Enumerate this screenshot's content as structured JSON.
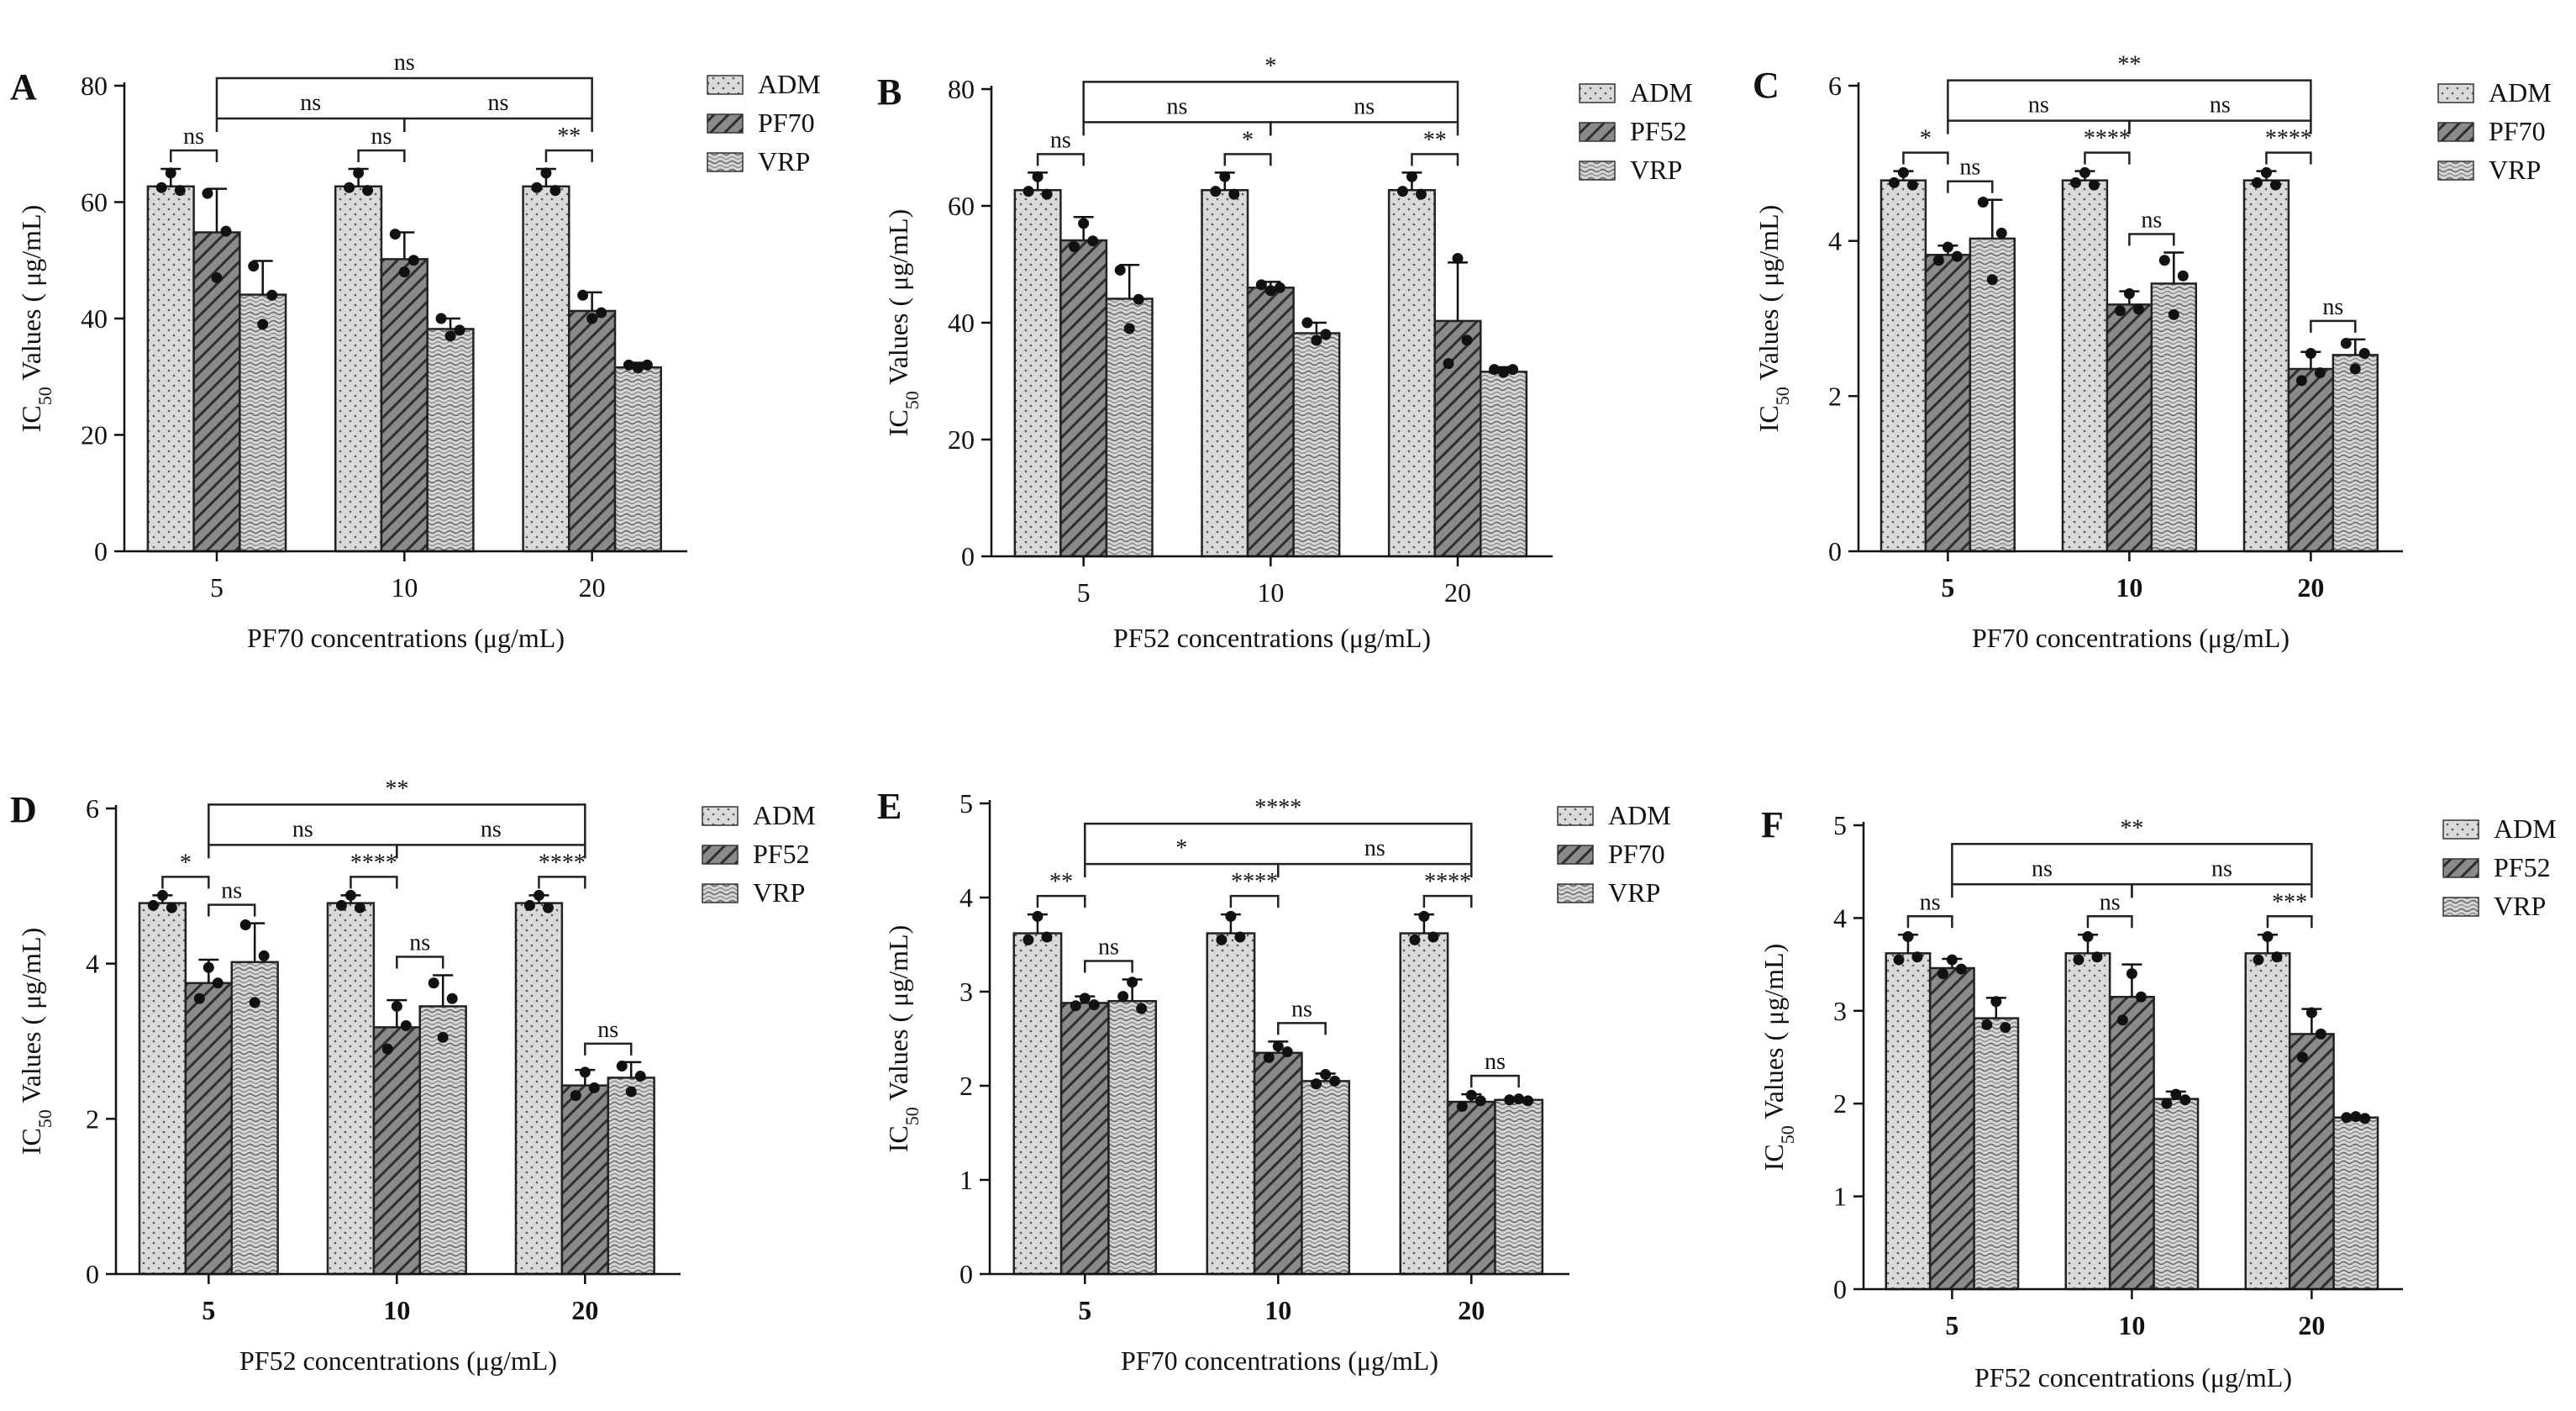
{
  "figure": {
    "legend_swatch_note": "ADM dotted, second drug hatched, VRP wave pattern"
  },
  "colors": {
    "adm_fill": "#d9d9d9",
    "drug_fill": "#6e6e6e",
    "vrp_fill": "#cfcfcf",
    "ink": "#111111"
  },
  "chart_data": [
    {
      "id": "A",
      "panel_label": "A",
      "type": "bar",
      "title": "",
      "categories": [
        "5",
        "10",
        "20"
      ],
      "xlabel": "PF70 concentrations (μg/mL)",
      "ylabel_prefix": "IC",
      "ylabel_sub": "50",
      "ylabel_suffix": " Values ( μg/mL)",
      "ylim": [
        0,
        80
      ],
      "yticks": [
        "0",
        "20",
        "40",
        "60",
        "80"
      ],
      "bold_x_ticks": false,
      "legend": [
        "ADM",
        "PF70",
        "VRP"
      ],
      "series": [
        {
          "name": "ADM",
          "values": [
            62.7,
            62.7,
            62.7
          ],
          "errors": [
            3.0,
            3.0,
            3.0
          ],
          "points": [
            [
              62.5,
              65,
              62
            ],
            [
              62.5,
              65,
              62
            ],
            [
              62.5,
              65,
              62
            ]
          ]
        },
        {
          "name": "PF70",
          "values": [
            54.8,
            50.2,
            41.3
          ],
          "errors": [
            7.5,
            4.6,
            3.2
          ],
          "points": [
            [
              61.5,
              47,
              55
            ],
            [
              54.5,
              48,
              50
            ],
            [
              44,
              40,
              41
            ]
          ]
        },
        {
          "name": "VRP",
          "values": [
            44.1,
            38.2,
            31.6
          ],
          "errors": [
            5.8,
            1.8,
            0.8
          ],
          "points": [
            [
              49,
              39,
              44
            ],
            [
              40,
              37,
              38
            ],
            [
              32,
              31.5,
              32
            ]
          ]
        }
      ],
      "annotations": [
        {
          "text": "ns",
          "type": "within",
          "group": 0,
          "from": 0,
          "to": 1
        },
        {
          "text": "ns",
          "type": "within",
          "group": 1,
          "from": 0,
          "to": 1
        },
        {
          "text": "**",
          "type": "within",
          "group": 2,
          "from": 0,
          "to": 1
        },
        {
          "text": "ns",
          "type": "across",
          "from": 0,
          "to": 1
        },
        {
          "text": "ns",
          "type": "across",
          "from": 1,
          "to": 2
        },
        {
          "text": "ns",
          "type": "across-top",
          "from": 0,
          "to": 2
        }
      ]
    },
    {
      "id": "B",
      "panel_label": "B",
      "type": "bar",
      "title": "",
      "categories": [
        "5",
        "10",
        "20"
      ],
      "xlabel": "PF52 concentrations (μg/mL)",
      "ylabel_prefix": "IC",
      "ylabel_sub": "50",
      "ylabel_suffix": " Values ( μg/mL)",
      "ylim": [
        0,
        80
      ],
      "yticks": [
        "0",
        "20",
        "40",
        "60",
        "80"
      ],
      "bold_x_ticks": false,
      "legend": [
        "ADM",
        "PF52",
        "VRP"
      ],
      "series": [
        {
          "name": "ADM",
          "values": [
            62.7,
            62.7,
            62.7
          ],
          "errors": [
            3.0,
            3.0,
            3.0
          ],
          "points": [
            [
              62.5,
              65,
              62
            ],
            [
              62.5,
              65,
              62
            ],
            [
              62.5,
              65,
              62
            ]
          ]
        },
        {
          "name": "PF52",
          "values": [
            54.1,
            46.0,
            40.3
          ],
          "errors": [
            4.0,
            1.0,
            10.0
          ],
          "points": [
            [
              53,
              57,
              54
            ],
            [
              46.5,
              45.5,
              46
            ],
            [
              33,
              51,
              37
            ]
          ]
        },
        {
          "name": "VRP",
          "values": [
            44.1,
            38.2,
            31.6
          ],
          "errors": [
            5.8,
            1.8,
            0.8
          ],
          "points": [
            [
              49,
              39,
              44
            ],
            [
              40,
              37,
              38
            ],
            [
              32,
              31.5,
              32
            ]
          ]
        }
      ],
      "annotations": [
        {
          "text": "ns",
          "type": "within",
          "group": 0,
          "from": 0,
          "to": 1
        },
        {
          "text": "*",
          "type": "within",
          "group": 1,
          "from": 0,
          "to": 1
        },
        {
          "text": "**",
          "type": "within",
          "group": 2,
          "from": 0,
          "to": 1
        },
        {
          "text": "ns",
          "type": "across",
          "from": 0,
          "to": 1
        },
        {
          "text": "ns",
          "type": "across",
          "from": 1,
          "to": 2
        },
        {
          "text": "*",
          "type": "across-top",
          "from": 0,
          "to": 2
        }
      ]
    },
    {
      "id": "C",
      "panel_label": "C",
      "type": "bar",
      "title": "",
      "categories": [
        "5",
        "10",
        "20"
      ],
      "xlabel": "PF70 concentrations (μg/mL)",
      "ylabel_prefix": "IC",
      "ylabel_sub": "50",
      "ylabel_suffix": " Values ( μg/mL)",
      "ylim": [
        0,
        6
      ],
      "yticks": [
        "0",
        "2",
        "4",
        "6"
      ],
      "bold_x_ticks": true,
      "legend": [
        "ADM",
        "PF70",
        "VRP"
      ],
      "series": [
        {
          "name": "ADM",
          "values": [
            4.78,
            4.78,
            4.78
          ],
          "errors": [
            0.12,
            0.12,
            0.12
          ],
          "points": [
            [
              4.75,
              4.88,
              4.72
            ],
            [
              4.75,
              4.88,
              4.72
            ],
            [
              4.75,
              4.88,
              4.72
            ]
          ]
        },
        {
          "name": "PF70",
          "values": [
            3.82,
            3.18,
            2.35
          ],
          "errors": [
            0.12,
            0.17,
            0.22
          ],
          "points": [
            [
              3.75,
              3.92,
              3.8
            ],
            [
              3.1,
              3.32,
              3.12
            ],
            [
              2.2,
              2.55,
              2.3
            ]
          ]
        },
        {
          "name": "VRP",
          "values": [
            4.03,
            3.45,
            2.53
          ],
          "errors": [
            0.5,
            0.4,
            0.2
          ],
          "points": [
            [
              4.5,
              3.5,
              4.1
            ],
            [
              3.75,
              3.05,
              3.55
            ],
            [
              2.68,
              2.35,
              2.55
            ]
          ]
        }
      ],
      "annotations": [
        {
          "text": "*",
          "type": "within",
          "group": 0,
          "from": 0,
          "to": 1
        },
        {
          "text": "ns",
          "type": "within",
          "group": 0,
          "from": 1,
          "to": 2
        },
        {
          "text": "****",
          "type": "within",
          "group": 1,
          "from": 0,
          "to": 1
        },
        {
          "text": "ns",
          "type": "within",
          "group": 1,
          "from": 1,
          "to": 2
        },
        {
          "text": "****",
          "type": "within",
          "group": 2,
          "from": 0,
          "to": 1
        },
        {
          "text": "ns",
          "type": "within",
          "group": 2,
          "from": 1,
          "to": 2
        },
        {
          "text": "ns",
          "type": "across",
          "from": 0,
          "to": 1
        },
        {
          "text": "ns",
          "type": "across",
          "from": 1,
          "to": 2
        },
        {
          "text": "**",
          "type": "across-top",
          "from": 0,
          "to": 2
        }
      ]
    },
    {
      "id": "D",
      "panel_label": "D",
      "type": "bar",
      "title": "",
      "categories": [
        "5",
        "10",
        "20"
      ],
      "xlabel": "PF52 concentrations (μg/mL)",
      "ylabel_prefix": "IC",
      "ylabel_sub": "50",
      "ylabel_suffix": " Values ( μg/mL)",
      "ylim": [
        0,
        6
      ],
      "yticks": [
        "0",
        "2",
        "4",
        "6"
      ],
      "bold_x_ticks": true,
      "legend": [
        "ADM",
        "PF52",
        "VRP"
      ],
      "series": [
        {
          "name": "ADM",
          "values": [
            4.78,
            4.78,
            4.78
          ],
          "errors": [
            0.1,
            0.1,
            0.1
          ],
          "points": [
            [
              4.75,
              4.88,
              4.72
            ],
            [
              4.75,
              4.88,
              4.72
            ],
            [
              4.75,
              4.88,
              4.72
            ]
          ]
        },
        {
          "name": "PF52",
          "values": [
            3.75,
            3.18,
            2.43
          ],
          "errors": [
            0.3,
            0.35,
            0.2
          ],
          "points": [
            [
              3.55,
              3.95,
              3.75
            ],
            [
              2.9,
              3.45,
              3.2
            ],
            [
              2.3,
              2.6,
              2.4
            ]
          ]
        },
        {
          "name": "VRP",
          "values": [
            4.02,
            3.45,
            2.53
          ],
          "errors": [
            0.5,
            0.4,
            0.2
          ],
          "points": [
            [
              4.5,
              3.5,
              4.1
            ],
            [
              3.75,
              3.05,
              3.55
            ],
            [
              2.68,
              2.35,
              2.55
            ]
          ]
        }
      ],
      "annotations": [
        {
          "text": "*",
          "type": "within",
          "group": 0,
          "from": 0,
          "to": 1
        },
        {
          "text": "ns",
          "type": "within",
          "group": 0,
          "from": 1,
          "to": 2
        },
        {
          "text": "****",
          "type": "within",
          "group": 1,
          "from": 0,
          "to": 1
        },
        {
          "text": "ns",
          "type": "within",
          "group": 1,
          "from": 1,
          "to": 2
        },
        {
          "text": "****",
          "type": "within",
          "group": 2,
          "from": 0,
          "to": 1
        },
        {
          "text": "ns",
          "type": "within",
          "group": 2,
          "from": 1,
          "to": 2
        },
        {
          "text": "ns",
          "type": "across",
          "from": 0,
          "to": 1
        },
        {
          "text": "ns",
          "type": "across",
          "from": 1,
          "to": 2
        },
        {
          "text": "**",
          "type": "across-top",
          "from": 0,
          "to": 2
        }
      ]
    },
    {
      "id": "E",
      "panel_label": "E",
      "type": "bar",
      "title": "",
      "categories": [
        "5",
        "10",
        "20"
      ],
      "xlabel": "PF70 concentrations (μg/mL)",
      "ylabel_prefix": "IC",
      "ylabel_sub": "50",
      "ylabel_suffix": " Values ( μg/mL)",
      "ylim": [
        0,
        5
      ],
      "yticks": [
        "0",
        "1",
        "2",
        "3",
        "4",
        "5"
      ],
      "bold_x_ticks": true,
      "legend": [
        "ADM",
        "PF70",
        "VRP"
      ],
      "series": [
        {
          "name": "ADM",
          "values": [
            3.62,
            3.62,
            3.62
          ],
          "errors": [
            0.2,
            0.2,
            0.2
          ],
          "points": [
            [
              3.55,
              3.8,
              3.58
            ],
            [
              3.55,
              3.8,
              3.58
            ],
            [
              3.55,
              3.8,
              3.58
            ]
          ]
        },
        {
          "name": "PF70",
          "values": [
            2.88,
            2.35,
            1.83
          ],
          "errors": [
            0.07,
            0.12,
            0.08
          ],
          "points": [
            [
              2.85,
              2.93,
              2.86
            ],
            [
              2.3,
              2.42,
              2.36
            ],
            [
              1.78,
              1.9,
              1.84
            ]
          ]
        },
        {
          "name": "VRP",
          "values": [
            2.9,
            2.05,
            1.85
          ],
          "errors": [
            0.23,
            0.08,
            0.02
          ],
          "points": [
            [
              2.95,
              3.1,
              2.82
            ],
            [
              2.02,
              2.12,
              2.05
            ],
            [
              1.85,
              1.86,
              1.84
            ]
          ]
        }
      ],
      "annotations": [
        {
          "text": "**",
          "type": "within",
          "group": 0,
          "from": 0,
          "to": 1
        },
        {
          "text": "ns",
          "type": "within",
          "group": 0,
          "from": 1,
          "to": 2
        },
        {
          "text": "****",
          "type": "within",
          "group": 1,
          "from": 0,
          "to": 1
        },
        {
          "text": "ns",
          "type": "within",
          "group": 1,
          "from": 1,
          "to": 2
        },
        {
          "text": "****",
          "type": "within",
          "group": 2,
          "from": 0,
          "to": 1
        },
        {
          "text": "ns",
          "type": "within",
          "group": 2,
          "from": 1,
          "to": 2
        },
        {
          "text": "*",
          "type": "across",
          "from": 0,
          "to": 1
        },
        {
          "text": "ns",
          "type": "across",
          "from": 1,
          "to": 2
        },
        {
          "text": "****",
          "type": "across-top",
          "from": 0,
          "to": 2
        }
      ]
    },
    {
      "id": "F",
      "panel_label": "F",
      "type": "bar",
      "title": "",
      "categories": [
        "5",
        "10",
        "20"
      ],
      "xlabel": "PF52 concentrations (μg/mL)",
      "ylabel_prefix": "IC",
      "ylabel_sub": "50",
      "ylabel_suffix": "  Values ( μg/mL)",
      "ylim": [
        0,
        5
      ],
      "yticks": [
        "0",
        "1",
        "2",
        "3",
        "4",
        "5"
      ],
      "bold_x_ticks": true,
      "legend": [
        "ADM",
        "PF52",
        "VRP"
      ],
      "series": [
        {
          "name": "ADM",
          "values": [
            3.62,
            3.62,
            3.62
          ],
          "errors": [
            0.2,
            0.2,
            0.2
          ],
          "points": [
            [
              3.55,
              3.8,
              3.58
            ],
            [
              3.55,
              3.8,
              3.58
            ],
            [
              3.55,
              3.8,
              3.58
            ]
          ]
        },
        {
          "name": "PF52",
          "values": [
            3.46,
            3.15,
            2.75
          ],
          "errors": [
            0.1,
            0.35,
            0.27
          ],
          "points": [
            [
              3.4,
              3.55,
              3.45
            ],
            [
              2.9,
              3.4,
              3.15
            ],
            [
              2.5,
              2.98,
              2.75
            ]
          ]
        },
        {
          "name": "VRP",
          "values": [
            2.92,
            2.05,
            1.85
          ],
          "errors": [
            0.22,
            0.08,
            0.02
          ],
          "points": [
            [
              2.85,
              3.1,
              2.82
            ],
            [
              2.0,
              2.1,
              2.04
            ],
            [
              1.85,
              1.86,
              1.84
            ]
          ]
        }
      ],
      "annotations": [
        {
          "text": "ns",
          "type": "within",
          "group": 0,
          "from": 0,
          "to": 1
        },
        {
          "text": "ns",
          "type": "within",
          "group": 1,
          "from": 0,
          "to": 1
        },
        {
          "text": "***",
          "type": "within",
          "group": 2,
          "from": 0,
          "to": 1
        },
        {
          "text": "ns",
          "type": "across",
          "from": 0,
          "to": 1
        },
        {
          "text": "ns",
          "type": "across",
          "from": 1,
          "to": 2
        },
        {
          "text": "**",
          "type": "across-top",
          "from": 0,
          "to": 2
        }
      ]
    }
  ]
}
